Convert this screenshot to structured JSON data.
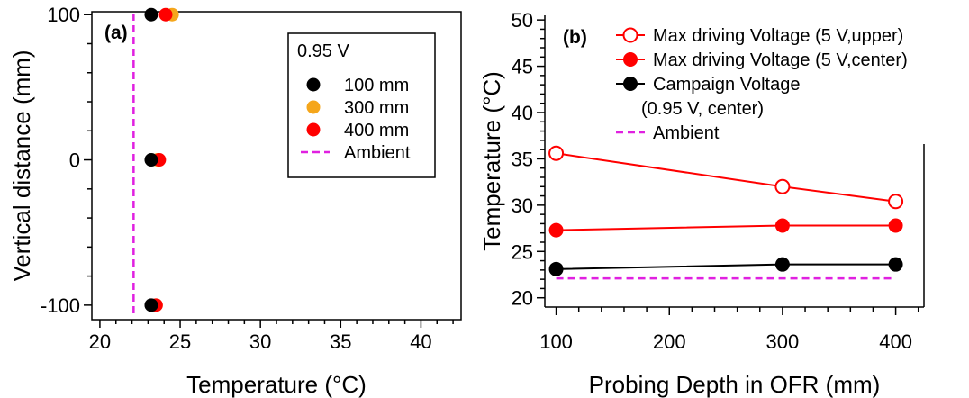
{
  "chart_data": [
    {
      "type": "scatter",
      "panel_label": "(a)",
      "xlabel": "Temperature (°C)",
      "ylabel": "Vertical distance (mm)",
      "xlim": [
        19.5,
        42.5
      ],
      "ylim": [
        -110,
        102
      ],
      "xticks": [
        20,
        25,
        30,
        35,
        40
      ],
      "yticks": [
        -100,
        0,
        100
      ],
      "legend_title": "0.95 V",
      "legend_position": "top-right",
      "series": [
        {
          "name": "100 mm",
          "color": "#000000",
          "points": [
            {
              "x": 23.2,
              "y": 100
            },
            {
              "x": 23.2,
              "y": 0
            },
            {
              "x": 23.2,
              "y": -100
            }
          ]
        },
        {
          "name": "300 mm",
          "color": "#f5a61b",
          "points": [
            {
              "x": 24.5,
              "y": 100
            },
            {
              "x": 23.6,
              "y": 0
            },
            {
              "x": 23.5,
              "y": -100
            }
          ]
        },
        {
          "name": "400 mm",
          "color": "#ff0000",
          "points": [
            {
              "x": 24.1,
              "y": 100
            },
            {
              "x": 23.7,
              "y": 0
            },
            {
              "x": 23.5,
              "y": -100
            }
          ]
        }
      ],
      "reference_line": {
        "name": "Ambient",
        "x": 22.1,
        "color": "#e020e0",
        "style": "dashed"
      }
    },
    {
      "type": "line",
      "panel_label": "(b)",
      "xlabel": "Probing Depth in OFR (mm)",
      "ylabel": "Temperature (°C)",
      "xlim": [
        90,
        425
      ],
      "ylim": [
        19,
        50.5
      ],
      "xticks": [
        100,
        200,
        300,
        400
      ],
      "yticks": [
        20,
        25,
        30,
        35,
        40,
        45,
        50
      ],
      "legend_position": "top",
      "x": [
        100,
        300,
        400
      ],
      "series": [
        {
          "name": "Max driving Voltage (5 V,upper)",
          "color": "#ff0000",
          "marker": "open-circle",
          "values": [
            35.6,
            32.0,
            30.4
          ]
        },
        {
          "name": "Max driving Voltage (5 V,center)",
          "color": "#ff0000",
          "marker": "filled-circle",
          "values": [
            27.3,
            27.8,
            27.8
          ]
        },
        {
          "name": "Campaign Voltage",
          "name_line2": "(0.95 V, center)",
          "color": "#000000",
          "marker": "filled-circle",
          "values": [
            23.1,
            23.6,
            23.6
          ]
        }
      ],
      "reference_line": {
        "name": "Ambient",
        "y": 22.1,
        "x_range": [
          100,
          400
        ],
        "color": "#e020e0",
        "style": "dashed"
      }
    }
  ]
}
